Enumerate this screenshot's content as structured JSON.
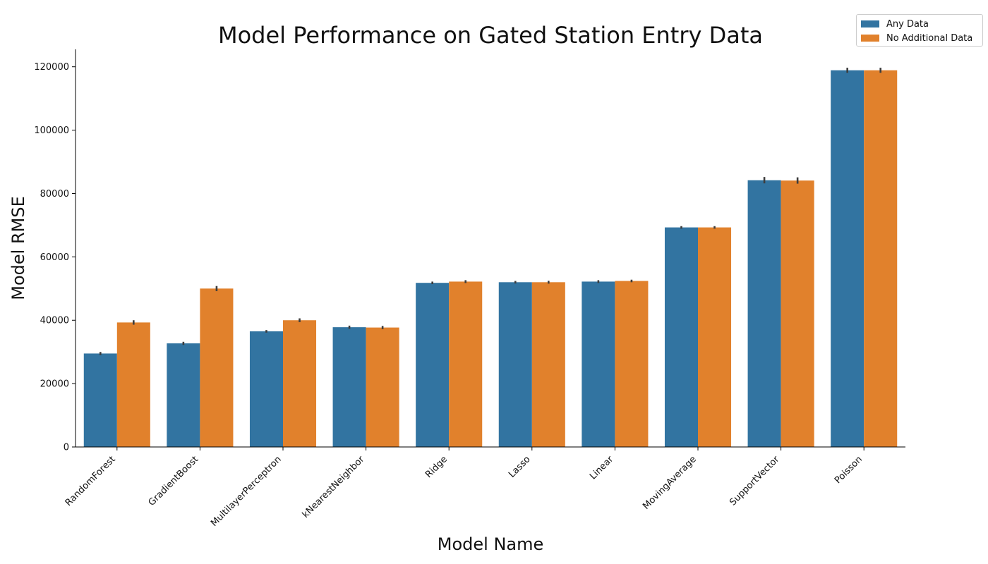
{
  "chart_data": {
    "type": "bar",
    "title": "Model Performance on Gated Station Entry Data",
    "xlabel": "Model Name",
    "ylabel": "Model RMSE",
    "categories": [
      "RandomForest",
      "GradientBoost",
      "MultilayerPerceptron",
      "kNearestNeighbor",
      "Ridge",
      "Lasso",
      "Linear",
      "MovingAverage",
      "SupportVector",
      "Poisson"
    ],
    "series": [
      {
        "name": "Any Data",
        "color": "#3274a1",
        "values": [
          29500,
          32700,
          36500,
          37800,
          51800,
          52000,
          52200,
          69300,
          84200,
          118900
        ],
        "errors": [
          500,
          500,
          400,
          500,
          400,
          400,
          450,
          400,
          1000,
          800
        ]
      },
      {
        "name": "No Additional Data",
        "color": "#e1812c",
        "values": [
          39300,
          50000,
          40000,
          37700,
          52200,
          52000,
          52400,
          69300,
          84100,
          118900
        ],
        "errors": [
          700,
          800,
          600,
          500,
          450,
          450,
          400,
          400,
          1000,
          800
        ]
      }
    ],
    "ylim": [
      0,
      125500
    ],
    "yticks": [
      0,
      20000,
      40000,
      60000,
      80000,
      100000,
      120000
    ],
    "ytick_labels": [
      "0",
      "20000",
      "40000",
      "60000",
      "80000",
      "100000",
      "120000"
    ],
    "grid": false,
    "legend_position": "top-right"
  }
}
